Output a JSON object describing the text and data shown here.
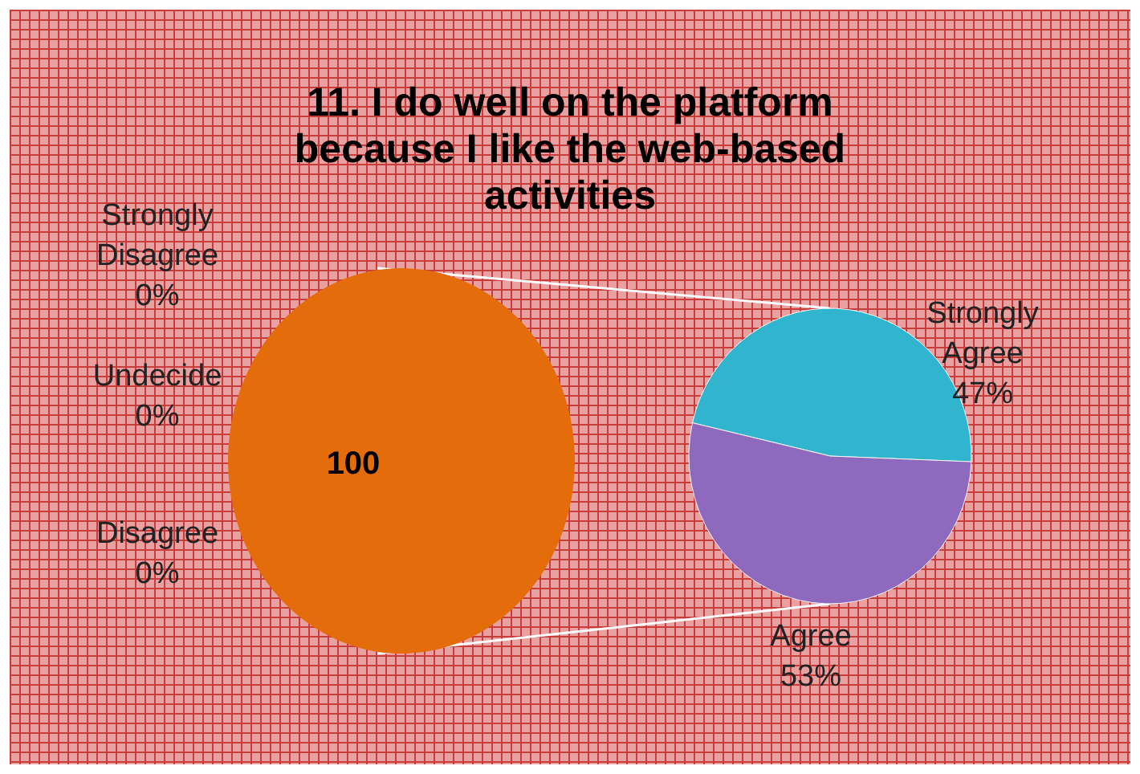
{
  "chart_data": [
    {
      "type": "pie",
      "title": "11. I do well on the platform because I like the web-based activities",
      "categories": [
        "Strongly Disagree",
        "Undecide",
        "Disagree",
        null
      ],
      "values": [
        0,
        0,
        0,
        100
      ],
      "colors": [
        "#4f81bd",
        "#c0504d",
        "#9bbb59",
        "#e46c0a"
      ],
      "value_labels": [
        "0%",
        "0%",
        "0%",
        "100"
      ]
    },
    {
      "type": "pie",
      "categories": [
        "Strongly Agree",
        "Agree"
      ],
      "values": [
        47,
        53
      ],
      "colors": [
        "#31b5ce",
        "#8e69bd"
      ],
      "value_labels": [
        "47%",
        "53%"
      ]
    }
  ]
}
